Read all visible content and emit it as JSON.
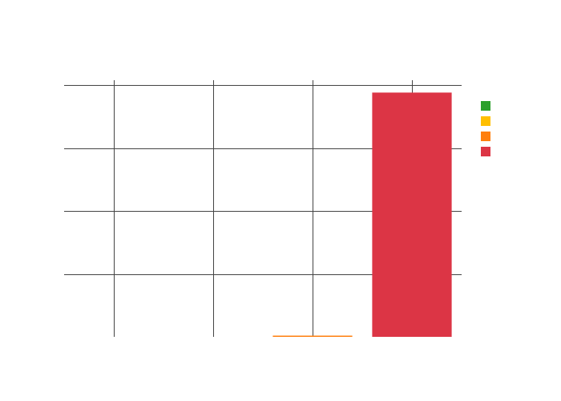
{
  "chart_data": {
    "type": "bar",
    "categories": [
      "",
      "",
      "",
      ""
    ],
    "series": [
      {
        "color": "#2ca02c",
        "values": [
          0,
          0,
          0,
          0
        ]
      },
      {
        "color": "#ffbf00",
        "values": [
          0,
          0,
          0,
          0
        ]
      },
      {
        "color": "#ff7f0e",
        "values": [
          0,
          0,
          0.3,
          0
        ]
      },
      {
        "color": "#dc3545",
        "values": [
          0,
          0,
          0,
          97
        ]
      }
    ],
    "title": "",
    "xlabel": "",
    "ylabel": "",
    "ylim": [
      0,
      100
    ],
    "yticks": [
      0,
      25,
      50,
      75,
      100
    ],
    "grid": true,
    "legend": "right",
    "colors": {
      "grid": "#444444",
      "background": "#ffffff"
    }
  }
}
